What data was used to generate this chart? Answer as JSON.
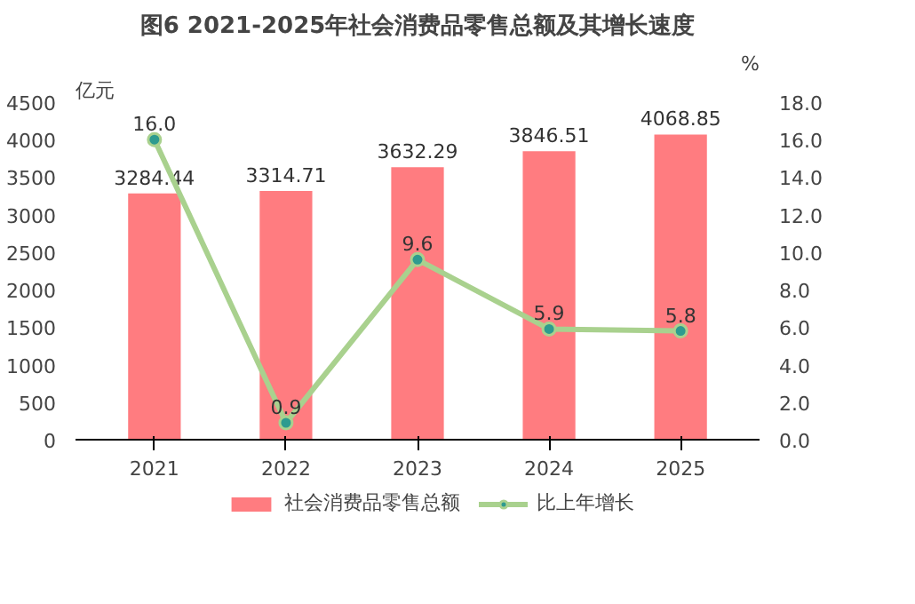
{
  "chart_data": {
    "type": "bar",
    "title": "图6 2021-2025年社会消费品零售总额及其增长速度",
    "ylabel": "亿元",
    "y2label": "%",
    "categories": [
      "2021",
      "2022",
      "2023",
      "2024",
      "2025"
    ],
    "series": [
      {
        "name": "社会消费品零售总额",
        "color": "#ff7c80",
        "values": [
          3284.44,
          3314.71,
          3632.29,
          3846.51,
          4068.85
        ],
        "value_labels": [
          "3284.44",
          "3314.71",
          "3632.29",
          "3846.51",
          "4068.85"
        ]
      },
      {
        "name": "比上年增长",
        "type": "line",
        "axis": "y2",
        "color": "#a9d18e",
        "marker": "circle",
        "values": [
          16.0,
          0.9,
          9.6,
          5.9,
          5.8
        ],
        "value_labels": [
          "16.0",
          "0.9",
          "9.6",
          "5.9",
          "5.8"
        ]
      }
    ],
    "ylim": [
      0,
      4500
    ],
    "yticks": [
      0,
      500,
      1000,
      1500,
      2000,
      2500,
      3000,
      3500,
      4000,
      4500
    ],
    "y2lim": [
      0,
      18
    ],
    "y2ticks": [
      {
        "value": 0,
        "label": "0.0"
      },
      {
        "value": 2,
        "label": "2.0"
      },
      {
        "value": 4,
        "label": "4.0"
      },
      {
        "value": 6,
        "label": "6.0"
      },
      {
        "value": 8,
        "label": "8.0"
      },
      {
        "value": 10,
        "label": "10.0"
      },
      {
        "value": 12,
        "label": "12.0"
      },
      {
        "value": 14,
        "label": "14.0"
      },
      {
        "value": 16,
        "label": "16.0"
      },
      {
        "value": 18,
        "label": "18.0"
      }
    ],
    "grid": false,
    "legend": "bottom"
  }
}
